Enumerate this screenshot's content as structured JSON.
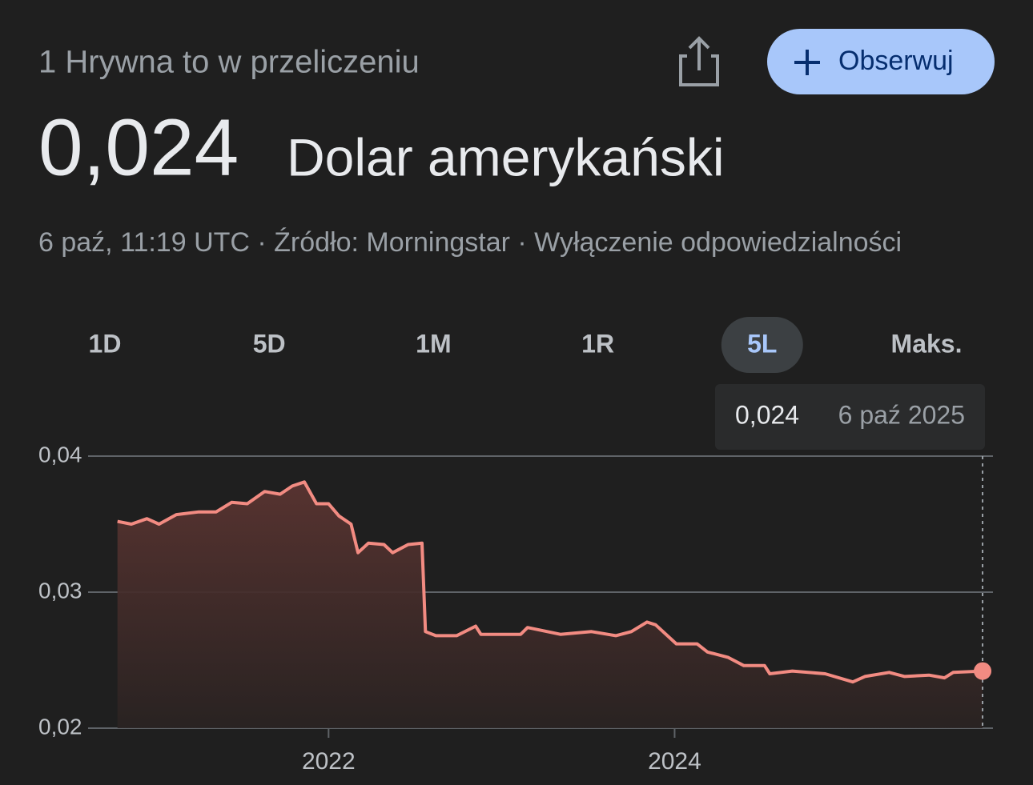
{
  "header": {
    "title": "1 Hrywna to w przeliczeniu",
    "follow_button": "Obserwuj"
  },
  "quote": {
    "value": "0,024",
    "currency": "Dolar amerykański",
    "meta": "6 paź, 11:19 UTC · Źródło: Morningstar · Wyłączenie odpowiedzialności"
  },
  "tabs": [
    {
      "label": "1D",
      "selected": false
    },
    {
      "label": "5D",
      "selected": false
    },
    {
      "label": "1M",
      "selected": false
    },
    {
      "label": "1R",
      "selected": false
    },
    {
      "label": "5L",
      "selected": true
    },
    {
      "label": "Maks.",
      "selected": false
    }
  ],
  "tooltip": {
    "value": "0,024",
    "date": "6 paź 2025"
  },
  "chart_data": {
    "type": "line",
    "x": [
      2020.78,
      2020.86,
      2020.95,
      2021.02,
      2021.12,
      2021.25,
      2021.35,
      2021.44,
      2021.53,
      2021.63,
      2021.72,
      2021.79,
      2021.86,
      2021.93,
      2022.0,
      2022.06,
      2022.13,
      2022.17,
      2022.23,
      2022.32,
      2022.37,
      2022.46,
      2022.54,
      2022.56,
      2022.62,
      2022.74,
      2022.85,
      2022.88,
      2023.11,
      2023.15,
      2023.34,
      2023.52,
      2023.66,
      2023.75,
      2023.84,
      2023.89,
      2024.01,
      2024.13,
      2024.19,
      2024.31,
      2024.4,
      2024.52,
      2024.55,
      2024.68,
      2024.87,
      2025.03,
      2025.1,
      2025.24,
      2025.33,
      2025.47,
      2025.56,
      2025.61,
      2025.78
    ],
    "series": [
      {
        "color": "#f28b82",
        "values": [
          0.0352,
          0.035,
          0.0354,
          0.035,
          0.0357,
          0.0359,
          0.0359,
          0.0366,
          0.0365,
          0.0374,
          0.0372,
          0.0378,
          0.0381,
          0.0365,
          0.0365,
          0.0356,
          0.035,
          0.0329,
          0.0336,
          0.0335,
          0.0329,
          0.0335,
          0.0336,
          0.0271,
          0.0268,
          0.0268,
          0.0275,
          0.0269,
          0.0269,
          0.0274,
          0.0269,
          0.0271,
          0.0268,
          0.0271,
          0.0278,
          0.0276,
          0.0262,
          0.0262,
          0.0256,
          0.0252,
          0.0246,
          0.0246,
          0.024,
          0.0242,
          0.024,
          0.0234,
          0.0238,
          0.0241,
          0.0238,
          0.0239,
          0.0237,
          0.0241,
          0.0242
        ]
      }
    ],
    "xlim": [
      2020.61,
      2025.84
    ],
    "xticks": [
      2022,
      2024
    ],
    "ylim": [
      0.02,
      0.04
    ],
    "yticks": [
      {
        "value": 0.02,
        "label": "0,02"
      },
      {
        "value": 0.03,
        "label": "0,03"
      },
      {
        "value": 0.04,
        "label": "0,04"
      }
    ],
    "grid": true
  }
}
